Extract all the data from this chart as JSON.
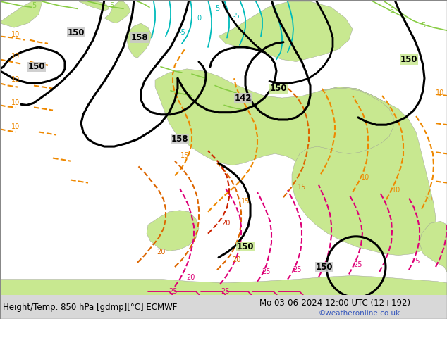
{
  "title_left": "Height/Temp. 850 hPa [gdmp][°C] ECMWF",
  "title_right": "Mo 03-06-2024 12:00 UTC (12+192)",
  "watermark": "©weatheronline.co.uk",
  "bg_color": "#ffffff",
  "ocean_color": "#c8c8c8",
  "land_green_dark": "#90c060",
  "land_green_light": "#c8e890",
  "text_color": "#000000",
  "watermark_color": "#3355bb",
  "bottom_bar_color": "#d8d8d8",
  "fig_width": 6.34,
  "fig_height": 4.9,
  "dpi": 100,
  "font_size_main": 8.5,
  "font_size_watermark": 7.5,
  "contour_black": "#000000",
  "contour_orange": "#ee8800",
  "contour_orange2": "#dd6600",
  "contour_cyan": "#00bbbb",
  "contour_green": "#44bb44",
  "contour_green2": "#88cc44",
  "contour_pink": "#dd0077",
  "contour_red": "#cc2200"
}
